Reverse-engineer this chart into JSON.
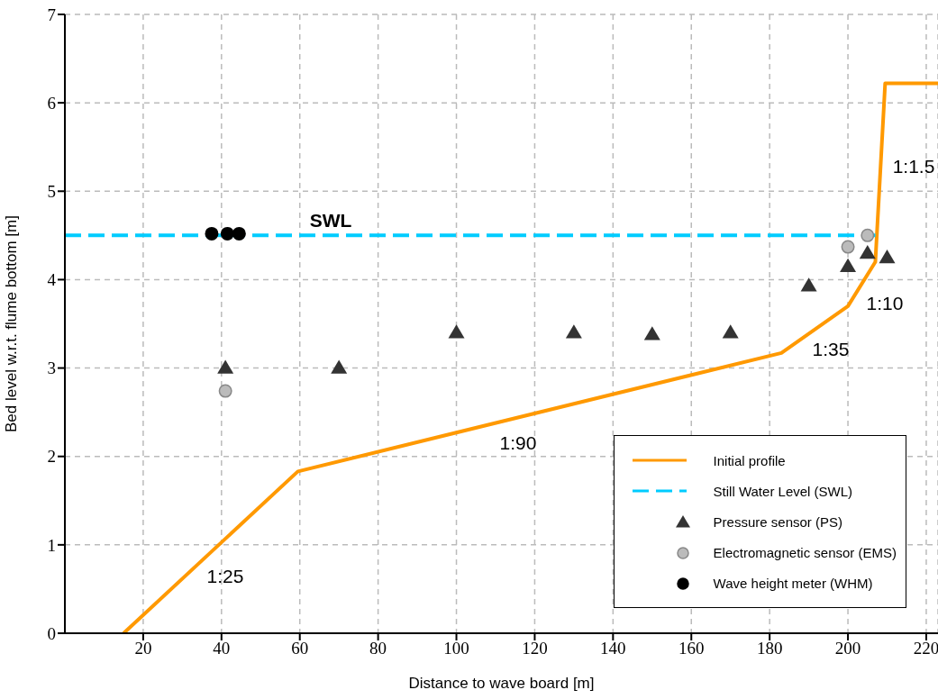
{
  "chart_data": {
    "type": "line",
    "xlabel": "Distance to wave board [m]",
    "ylabel": "Bed level w.r.t. flume bottom [m]",
    "xlim": [
      0,
      223
    ],
    "xticks": [
      20,
      40,
      60,
      80,
      100,
      120,
      140,
      160,
      180,
      200,
      220
    ],
    "ylim": [
      0,
      7
    ],
    "yticks": [
      0,
      1,
      2,
      3,
      4,
      5,
      6,
      7
    ],
    "grid": true,
    "legend": "bottom right",
    "series": [
      {
        "name": "Initial profile",
        "type": "line",
        "color": "#ff9900",
        "line_style": "solid",
        "marker": "none",
        "x": [
          15,
          59.5,
          183,
          200,
          207,
          209.5,
          223
        ],
        "values": [
          0,
          1.83,
          3.17,
          3.7,
          4.2,
          6.22,
          6.22
        ]
      },
      {
        "name": "Still Water Level (SWL)",
        "type": "line",
        "color": "#00ccff",
        "line_style": "dashed",
        "marker": "none",
        "x": [
          0,
          207
        ],
        "values": [
          4.5,
          4.5
        ]
      },
      {
        "name": "Pressure sensor (PS)",
        "type": "scatter",
        "color": "#333333",
        "marker": "triangle",
        "x": [
          41,
          70,
          100,
          130,
          150,
          170,
          190,
          200,
          205,
          210
        ],
        "values": [
          3.0,
          3.0,
          3.4,
          3.4,
          3.38,
          3.4,
          3.93,
          4.15,
          4.3,
          4.25
        ]
      },
      {
        "name": "Electromagnetic sensor (EMS)",
        "type": "scatter",
        "color": "#bbbbbb",
        "marker": "circle",
        "x": [
          41,
          200,
          205
        ],
        "values": [
          2.74,
          4.37,
          4.5
        ]
      },
      {
        "name": "Wave height meter (WHM)",
        "type": "scatter",
        "color": "#000000",
        "marker": "circle",
        "x": [
          37.5,
          41.5,
          44.5
        ],
        "values": [
          4.52,
          4.52,
          4.52
        ]
      }
    ],
    "annotations": [
      "SWL",
      "1:25",
      "1:90",
      "1:35",
      "1:10",
      "1:1.5"
    ]
  }
}
